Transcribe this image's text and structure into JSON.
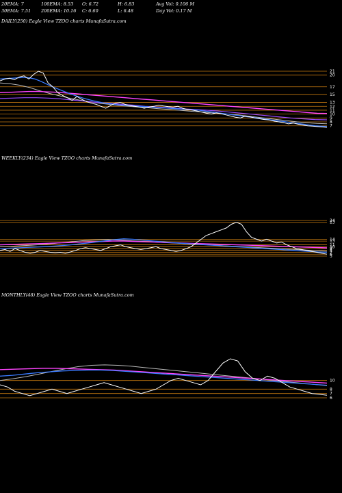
{
  "header": {
    "row1": [
      "20EMA: 7",
      "100EMA: 8.53",
      "O: 6.72",
      "H: 6.83",
      "Avg Vol: 0.106  M"
    ],
    "row2": [
      "30EMA: 7.51",
      "200EMA: 10.16",
      "C: 6.60",
      "L: 6.48",
      "Day Vol: 0.17  M"
    ]
  },
  "colors": {
    "price": "#ffffff",
    "ema_blue": "#3a7bff",
    "ema_pink": "#ff44ff",
    "ema_purple": "#9a4aff",
    "ema_gray": "#bbbbbb",
    "grid": "#c77a10"
  },
  "chart_data": [
    {
      "type": "line",
      "title": "DAILY(250) Eagle   View  TZOO charts MunafaSutra.com",
      "ticks": [
        "21",
        "20",
        "17",
        "15",
        "13",
        "12",
        "11",
        "10",
        "9",
        "8",
        "7"
      ],
      "price": [
        18.5,
        19,
        19.2,
        18.8,
        19.5,
        19.8,
        19,
        20.2,
        21,
        20.5,
        18,
        17,
        15.5,
        14.8,
        14.2,
        13.5,
        14.5,
        13.8,
        13.2,
        12.8,
        12.5,
        12,
        11.5,
        12.2,
        12.8,
        13,
        12.5,
        12.2,
        12,
        11.8,
        11.5,
        11.8,
        12,
        12.3,
        12.1,
        11.9,
        11.8,
        12,
        11.5,
        11.2,
        11,
        10.8,
        10.5,
        10.2,
        10,
        10.3,
        10.1,
        9.8,
        9.5,
        9.2,
        9,
        9.5,
        9.3,
        9,
        8.8,
        8.6,
        8.5,
        8.2,
        8,
        7.8,
        7.5,
        7.7,
        7.4,
        7.2,
        7,
        6.9,
        6.8,
        6.7,
        6.6
      ],
      "ema_blue": [
        19,
        19.1,
        19.2,
        19.3,
        19.4,
        19.3,
        19,
        18.4,
        17.7,
        17,
        16.4,
        15.8,
        15.2,
        14.7,
        14.2,
        13.8,
        13.4,
        13.1,
        12.8,
        12.6,
        12.4,
        12.3,
        12.2,
        12.1,
        12,
        11.9,
        11.8,
        11.7,
        11.6,
        11.5,
        11.4,
        11.3,
        11.2,
        11.1,
        11,
        10.8,
        10.6,
        10.4,
        10.2,
        10,
        9.8,
        9.6,
        9.4,
        9.2,
        9,
        8.8,
        8.6,
        8.4,
        8.2,
        8,
        7.8,
        7.6,
        7.4,
        7.2,
        7,
        6.9,
        6.8
      ],
      "ema_pink": [
        15.5,
        15.6,
        15.7,
        15.8,
        15.8,
        15.7,
        15.6,
        15.4,
        15.2,
        15,
        14.8,
        14.6,
        14.4,
        14.2,
        14,
        13.8,
        13.6,
        13.4,
        13.2,
        13,
        12.8,
        12.6,
        12.4,
        12.2,
        12,
        11.8,
        11.6,
        11.4,
        11.2,
        11,
        10.8,
        10.6,
        10.4,
        10.2,
        10.16
      ],
      "ema_purple": [
        14,
        14.1,
        14.2,
        14.2,
        14.1,
        13.9,
        13.6,
        13.3,
        13,
        12.8,
        12.5,
        12.3,
        12,
        11.8,
        11.6,
        11.4,
        11.2,
        11,
        10.8,
        10.5,
        10.2,
        9.9,
        9.6,
        9.3,
        9,
        8.8,
        8.6,
        8.53
      ],
      "ema_gray": [
        18,
        17.8,
        17.4,
        16.8,
        16,
        15.3,
        14.7,
        14.1,
        13.6,
        13.2,
        12.8,
        12.5,
        12.2,
        12,
        11.8,
        11.6,
        11.4,
        11.2,
        11,
        10.8,
        10.6,
        10.4,
        10.2,
        10,
        9.8,
        9.5,
        9.2,
        8.9,
        8.6,
        8.3,
        8,
        7.8,
        7.6,
        7.51
      ]
    },
    {
      "type": "line",
      "title": "WEEKLY(234) Eagle   View  TZOO charts MunafaSutra.com",
      "ticks": [
        "24",
        "23",
        "14",
        "13",
        "11",
        "10",
        "9",
        "8",
        "7",
        "6",
        "5"
      ],
      "price": [
        8,
        8.5,
        7.5,
        9,
        8,
        7,
        6.5,
        7,
        8,
        7.5,
        7,
        6.8,
        7,
        6.5,
        7.2,
        8,
        9,
        9.5,
        9,
        8.5,
        8,
        9,
        10,
        10.5,
        11,
        10,
        9.5,
        9,
        8.5,
        9,
        9.5,
        10,
        9,
        8.5,
        8,
        7.5,
        8,
        9,
        10,
        12,
        14,
        16,
        17,
        18,
        19,
        20,
        22,
        23,
        22,
        18,
        15,
        14,
        13,
        14,
        13,
        12,
        12.5,
        11,
        10,
        9,
        8.5,
        8,
        7.5,
        7,
        6.5,
        6
      ],
      "ema_blue": [
        9,
        9.2,
        9.4,
        9.6,
        9.8,
        10,
        10.3,
        10.6,
        11,
        11.5,
        12,
        12.6,
        13.2,
        13.8,
        14.2,
        14,
        13.6,
        13.2,
        12.8,
        12.4,
        12,
        11.7,
        11.4,
        11.1,
        10.8,
        10.5,
        10.2,
        9.9,
        9.6,
        9.3,
        9,
        8.7,
        8.4,
        8.1,
        7.8,
        7.5,
        7.2,
        7
      ],
      "ema_pink": [
        11,
        11.2,
        11.4,
        11.6,
        11.8,
        12,
        12.2,
        12.4,
        12.6,
        12.8,
        13,
        13,
        12.8,
        12.6,
        12.4,
        12.2,
        12,
        11.8,
        11.6,
        11.4,
        11.2,
        11,
        10.8,
        10.6,
        10.4,
        10.2,
        10,
        9.8,
        9.6,
        9.4
      ],
      "ema_gray": [
        10,
        10.2,
        10.5,
        10.8,
        11.2,
        11.7,
        12.2,
        12.8,
        13.3,
        13.6,
        13.8,
        13.6,
        13.3,
        13,
        12.7,
        12.4,
        12.1,
        11.8,
        11.5,
        11.2,
        10.9,
        10.6,
        10.3,
        10,
        9.7,
        9.4,
        9.1,
        8.8,
        8.5,
        8.2,
        7.9,
        7.6
      ]
    },
    {
      "type": "line",
      "title": "MONTHLY(48) Eagle   View  TZOO charts MunafaSutra.com",
      "ticks": [
        "10",
        "8",
        "7",
        "6"
      ],
      "price": [
        9,
        8.5,
        7.5,
        7,
        6.5,
        7,
        7.5,
        8,
        7.5,
        7,
        7.5,
        8,
        8.5,
        9,
        9.5,
        9,
        8.5,
        8,
        7.5,
        7,
        7.5,
        8,
        9,
        10,
        10.5,
        10,
        9.5,
        9,
        10,
        12,
        14,
        15,
        14.5,
        12,
        10.5,
        10,
        11,
        10.5,
        9.5,
        8.5,
        8,
        7.5,
        7,
        6.8,
        6.6
      ],
      "ema_blue": [
        11,
        11.2,
        11.5,
        11.8,
        12,
        12.2,
        12.3,
        12.4,
        12.4,
        12.3,
        12.1,
        11.9,
        11.7,
        11.5,
        11.3,
        11.1,
        10.9,
        10.7,
        10.5,
        10.3,
        10.1,
        9.9,
        9.7,
        9.5,
        9.3,
        9.1,
        8.9
      ],
      "ema_pink": [
        12.5,
        12.6,
        12.7,
        12.8,
        12.8,
        12.7,
        12.6,
        12.5,
        12.4,
        12.2,
        12,
        11.8,
        11.6,
        11.4,
        11.2,
        11,
        10.8,
        10.6,
        10.4,
        10.2,
        10,
        9.8,
        9.6,
        9.4
      ],
      "ema_gray": [
        10,
        10.4,
        10.9,
        11.5,
        12.1,
        12.7,
        13.2,
        13.5,
        13.6,
        13.5,
        13.3,
        13,
        12.7,
        12.4,
        12.1,
        11.8,
        11.5,
        11.2,
        10.9,
        10.6,
        10.3,
        10,
        9.7,
        9.4,
        9.1,
        8.8
      ]
    }
  ]
}
